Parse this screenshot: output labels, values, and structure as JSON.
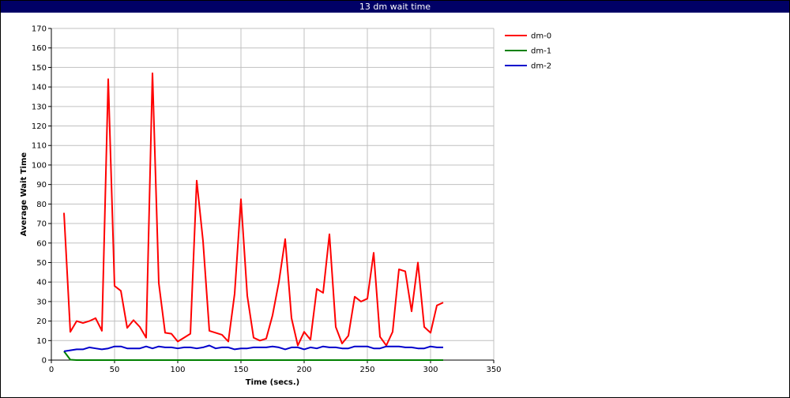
{
  "window": {
    "title": "13 dm wait time"
  },
  "chart_data": {
    "type": "line",
    "title": "13 dm wait time",
    "xlabel": "Time (secs.)",
    "ylabel": "Average Wait Time",
    "xlim": [
      0,
      350
    ],
    "ylim": [
      0,
      170
    ],
    "xticks": [
      0,
      50,
      100,
      150,
      200,
      250,
      300,
      350
    ],
    "yticks": [
      0,
      10,
      20,
      30,
      40,
      50,
      60,
      70,
      80,
      90,
      100,
      110,
      120,
      130,
      140,
      150,
      160,
      170
    ],
    "grid": true,
    "legend_position": "right",
    "series": [
      {
        "name": "dm-0",
        "color": "#ff0000",
        "points": [
          [
            10,
            75.5
          ],
          [
            15,
            14.5
          ],
          [
            20,
            20
          ],
          [
            25,
            19
          ],
          [
            30,
            20
          ],
          [
            35,
            21.5
          ],
          [
            40,
            15
          ],
          [
            45,
            144
          ],
          [
            50,
            38
          ],
          [
            55,
            35.5
          ],
          [
            60,
            16.5
          ],
          [
            65,
            20.5
          ],
          [
            70,
            17
          ],
          [
            75,
            11.5
          ],
          [
            80,
            147
          ],
          [
            85,
            39.5
          ],
          [
            90,
            14
          ],
          [
            95,
            13.5
          ],
          [
            100,
            9.5
          ],
          [
            105,
            11.5
          ],
          [
            110,
            13.5
          ],
          [
            115,
            92
          ],
          [
            120,
            61
          ],
          [
            125,
            15
          ],
          [
            130,
            14
          ],
          [
            135,
            13
          ],
          [
            140,
            9.5
          ],
          [
            145,
            34
          ],
          [
            150,
            82.5
          ],
          [
            155,
            33
          ],
          [
            160,
            11.5
          ],
          [
            165,
            10
          ],
          [
            170,
            11
          ],
          [
            175,
            23
          ],
          [
            180,
            40
          ],
          [
            185,
            62
          ],
          [
            190,
            21.5
          ],
          [
            195,
            7.5
          ],
          [
            200,
            14.5
          ],
          [
            205,
            10.5
          ],
          [
            210,
            36.5
          ],
          [
            215,
            34.5
          ],
          [
            220,
            64.5
          ],
          [
            225,
            17
          ],
          [
            230,
            8.5
          ],
          [
            235,
            12.5
          ],
          [
            240,
            32.5
          ],
          [
            245,
            30
          ],
          [
            250,
            31.5
          ],
          [
            255,
            55
          ],
          [
            260,
            12
          ],
          [
            265,
            7.5
          ],
          [
            270,
            14.5
          ],
          [
            275,
            46.5
          ],
          [
            280,
            45.5
          ],
          [
            285,
            25
          ],
          [
            290,
            50
          ],
          [
            295,
            17
          ],
          [
            300,
            14
          ],
          [
            305,
            28
          ],
          [
            310,
            29.5
          ]
        ]
      },
      {
        "name": "dm-1",
        "color": "#008000",
        "points": [
          [
            10,
            4.5
          ],
          [
            15,
            0.2
          ],
          [
            20,
            0
          ],
          [
            25,
            0
          ],
          [
            50,
            0
          ],
          [
            100,
            0
          ],
          [
            150,
            0
          ],
          [
            200,
            0
          ],
          [
            250,
            0
          ],
          [
            300,
            0
          ],
          [
            310,
            0
          ]
        ]
      },
      {
        "name": "dm-2",
        "color": "#0000cc",
        "points": [
          [
            10,
            4.5
          ],
          [
            15,
            5
          ],
          [
            20,
            5.5
          ],
          [
            25,
            5.5
          ],
          [
            30,
            6.5
          ],
          [
            35,
            6
          ],
          [
            40,
            5.5
          ],
          [
            45,
            6
          ],
          [
            50,
            7
          ],
          [
            55,
            7
          ],
          [
            60,
            6
          ],
          [
            65,
            6
          ],
          [
            70,
            6
          ],
          [
            75,
            7
          ],
          [
            80,
            6
          ],
          [
            85,
            7
          ],
          [
            90,
            6.5
          ],
          [
            95,
            6.5
          ],
          [
            100,
            6
          ],
          [
            105,
            6.5
          ],
          [
            110,
            6.5
          ],
          [
            115,
            6
          ],
          [
            120,
            6.5
          ],
          [
            125,
            7.5
          ],
          [
            130,
            6
          ],
          [
            135,
            6.5
          ],
          [
            140,
            6.5
          ],
          [
            145,
            5.5
          ],
          [
            150,
            6
          ],
          [
            155,
            6
          ],
          [
            160,
            6.5
          ],
          [
            165,
            6.5
          ],
          [
            170,
            6.5
          ],
          [
            175,
            7
          ],
          [
            180,
            6.5
          ],
          [
            185,
            5.5
          ],
          [
            190,
            6.5
          ],
          [
            195,
            6.5
          ],
          [
            200,
            5.5
          ],
          [
            205,
            6.5
          ],
          [
            210,
            6
          ],
          [
            215,
            7
          ],
          [
            220,
            6.5
          ],
          [
            225,
            6.5
          ],
          [
            230,
            6
          ],
          [
            235,
            6
          ],
          [
            240,
            7
          ],
          [
            245,
            7
          ],
          [
            250,
            7
          ],
          [
            255,
            6
          ],
          [
            260,
            6
          ],
          [
            265,
            7
          ],
          [
            270,
            7
          ],
          [
            275,
            7
          ],
          [
            280,
            6.5
          ],
          [
            285,
            6.5
          ],
          [
            290,
            6
          ],
          [
            295,
            6
          ],
          [
            300,
            7
          ],
          [
            305,
            6.5
          ],
          [
            310,
            6.5
          ]
        ]
      }
    ]
  }
}
